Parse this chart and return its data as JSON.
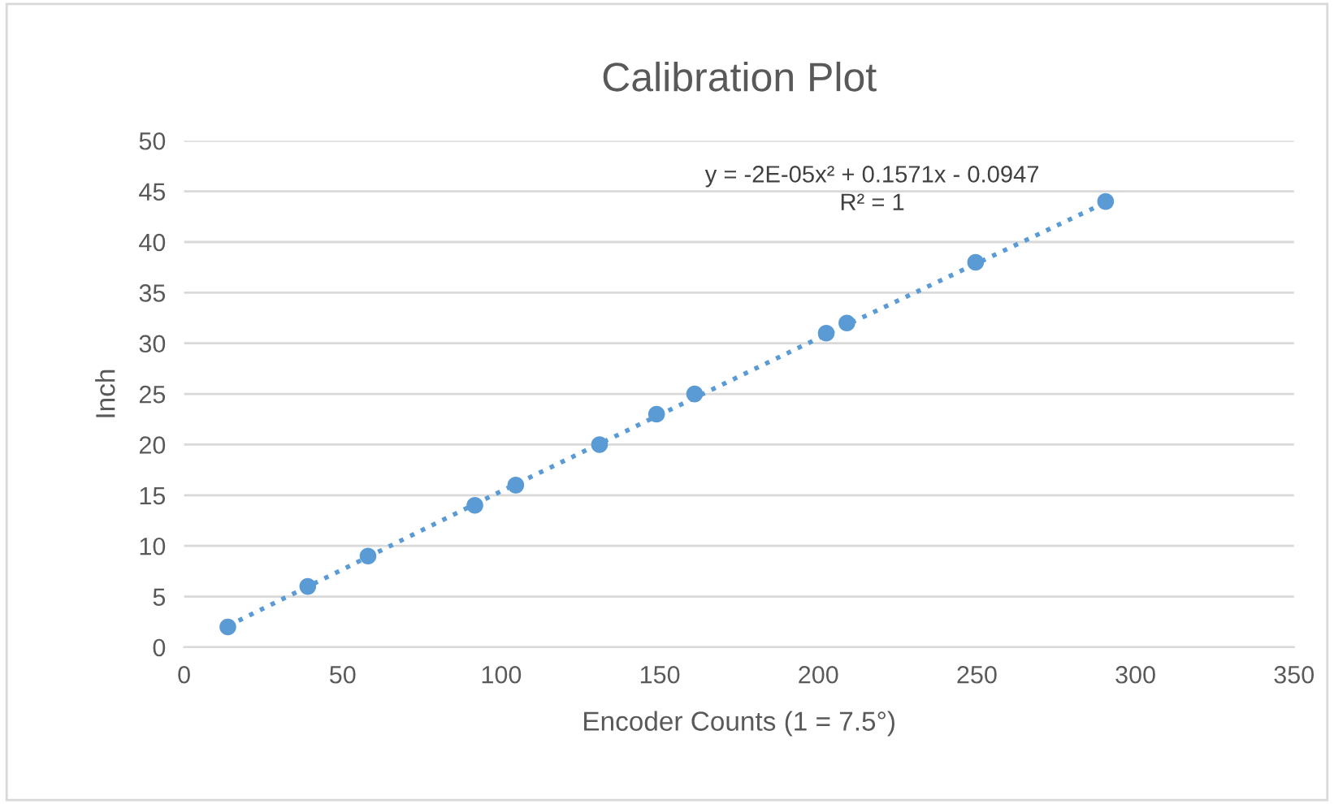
{
  "chart_data": {
    "type": "scatter",
    "title": "Calibration Plot",
    "xlabel": "Encoder Counts (1 = 7.5°)",
    "ylabel": "Inch",
    "series": [
      {
        "color": "#5b9bd5",
        "x": [
          13.8,
          39,
          58,
          91.7,
          104.6,
          131,
          149,
          161,
          202.5,
          209,
          249.6,
          290.6
        ],
        "values": [
          2,
          6,
          9,
          14,
          16,
          20,
          23,
          25,
          31,
          32,
          38,
          44
        ],
        "marker": "circle"
      },
      {
        "type": "line",
        "color": "#5b9bd5",
        "x": [
          13.8,
          100,
          200,
          290.6
        ],
        "values": [
          2.1,
          15.4,
          30.5,
          43.9
        ],
        "line_style": "dotted",
        "marker": "none"
      }
    ],
    "annotations": [
      "y = -2E-05x² + 0.1571x - 0.0947",
      "R² = 1"
    ],
    "xlim": [
      0,
      350
    ],
    "xticks": [
      0,
      50,
      100,
      150,
      200,
      250,
      300,
      350
    ],
    "ylim": [
      0,
      50
    ],
    "yticks": [
      0,
      5,
      10,
      15,
      20,
      25,
      30,
      35,
      40,
      45,
      50
    ],
    "grid": "y",
    "legend": false
  }
}
